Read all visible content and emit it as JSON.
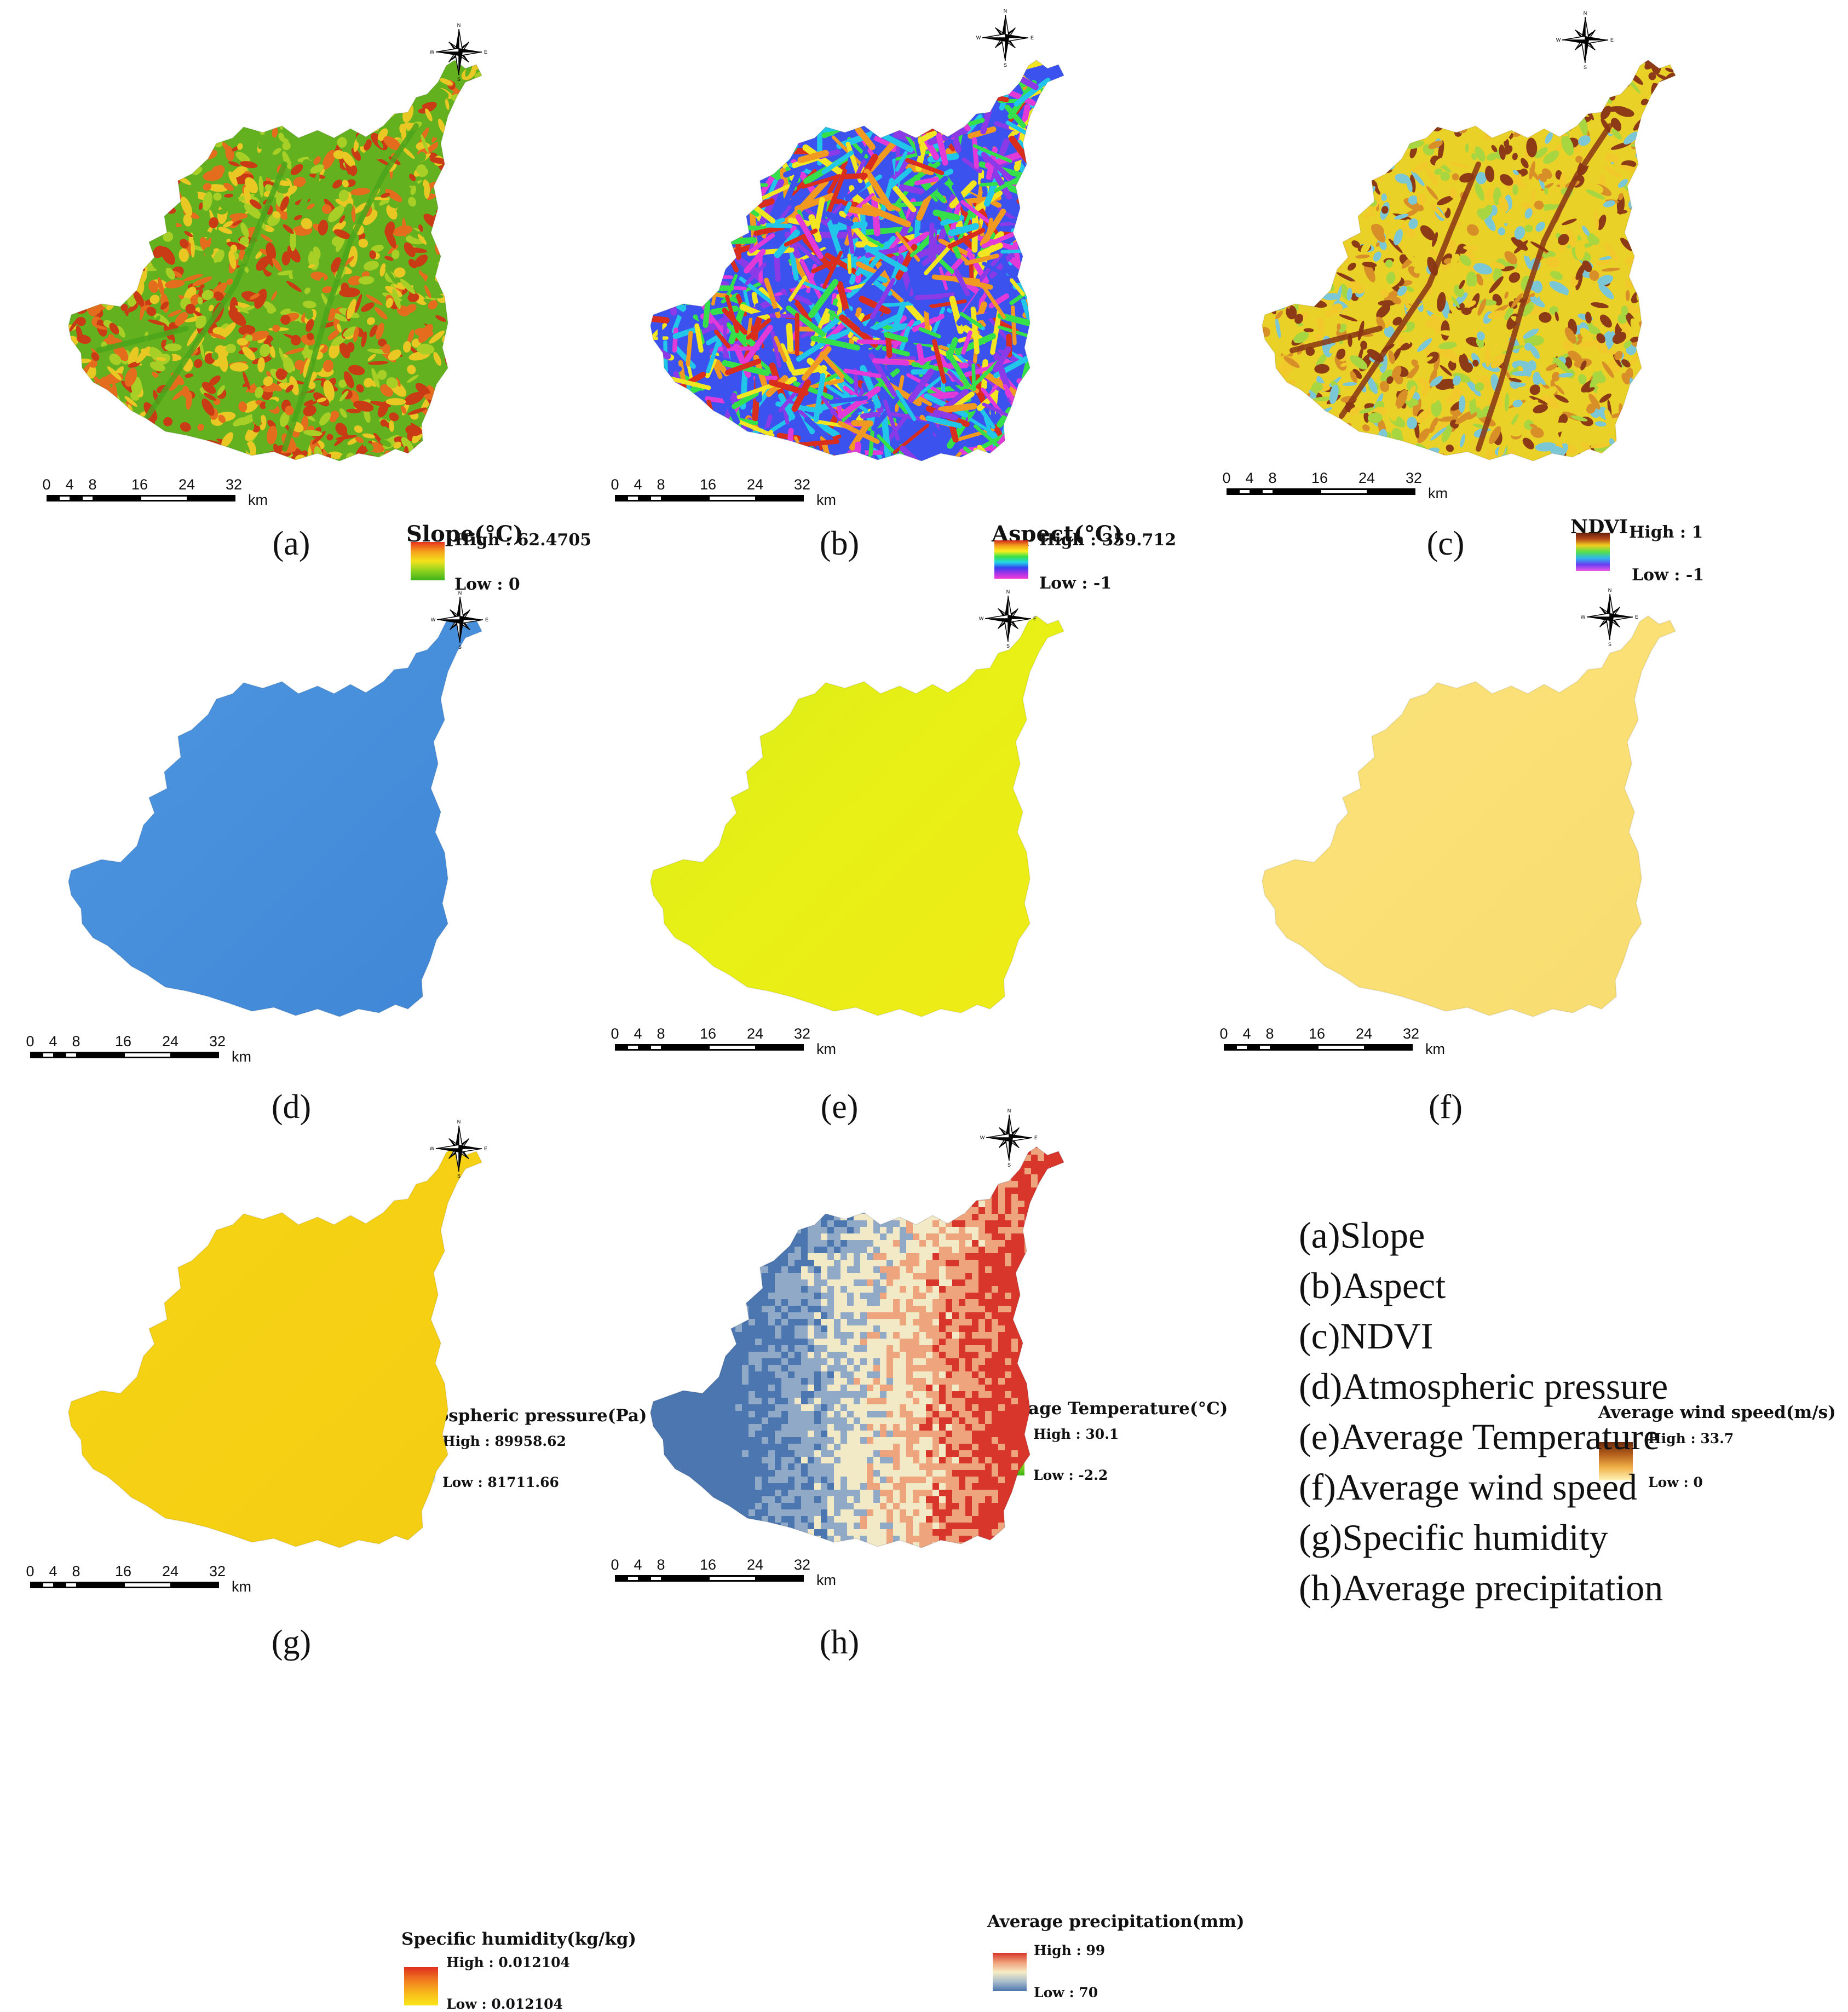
{
  "figure": {
    "panels": [
      {
        "id": "a",
        "label": "(a)",
        "legend_title": "Slope(°C)",
        "high_label": "High : 62.4705",
        "low_label": "Low : 0",
        "ramp_colors": [
          "#e8321e",
          "#f6a21c",
          "#f2e21c",
          "#8ed11f",
          "#3eb21a"
        ],
        "map_colors": [
          "#63b11e",
          "#a7cf25",
          "#e9c824",
          "#e36d1c",
          "#c93b15"
        ],
        "pattern": "terrain"
      },
      {
        "id": "b",
        "label": "(b)",
        "legend_title": "Aspect(°C)",
        "high_label": "High : 359.712",
        "low_label": "Low : -1",
        "ramp_colors": [
          "#d02a1a",
          "#f6a21c",
          "#f8ef20",
          "#35e04a",
          "#22d8e6",
          "#3342f0",
          "#a534e8",
          "#f03cd8"
        ],
        "map_colors": [
          "#e23ad8",
          "#8a3ae6",
          "#3b52ee",
          "#22c6e8",
          "#35e04a",
          "#f2e623",
          "#f19a22",
          "#d92d1d"
        ],
        "pattern": "aspect"
      },
      {
        "id": "c",
        "label": "(c)",
        "legend_title": "NDVI",
        "high_label": "High : 1",
        "low_label": "Low : -1",
        "ramp_colors": [
          "#6b1d0e",
          "#b54b1a",
          "#f0d020",
          "#55e04a",
          "#2fb6ec",
          "#6a3cf2",
          "#f05ae8"
        ],
        "map_colors": [
          "#e9d127",
          "#f1c92a",
          "#a7d640",
          "#7cc7d5",
          "#d98f28",
          "#8c3b16"
        ],
        "pattern": "ndvi"
      },
      {
        "id": "d",
        "label": "(d)",
        "legend_title": "Atmospheric pressure(Pa)",
        "high_label": "High : 89958.62",
        "low_label": "Low : 81711.66",
        "ramp_colors": [
          "#10258f",
          "#2e6bd0",
          "#8ec4ee",
          "#e2f2fb"
        ],
        "map_colors": [
          "#4f97e0",
          "#3f86d6"
        ],
        "pattern": "smooth"
      },
      {
        "id": "e",
        "label": "(e)",
        "legend_title": "Average Temperature(°C)",
        "high_label": "High : 30.1",
        "low_label": "Low : -2.2",
        "ramp_colors": [
          "#e8321e",
          "#f6a21c",
          "#f2e21c",
          "#8ed11f",
          "#3eb21a"
        ],
        "map_colors": [
          "#d9ea1b",
          "#e8f015",
          "#f0ea17"
        ],
        "pattern": "smooth"
      },
      {
        "id": "f",
        "label": "(f)",
        "legend_title": "Average wind speed(m/s)",
        "high_label": "High : 33.7",
        "low_label": "Low : 0",
        "ramp_colors": [
          "#6b2a0a",
          "#b8621d",
          "#f1b24a",
          "#fdf4b8"
        ],
        "map_colors": [
          "#fbe37a",
          "#f8dc70"
        ],
        "pattern": "smooth"
      },
      {
        "id": "g",
        "label": "(g)",
        "legend_title": "Specific humidity(kg/kg)",
        "high_label": "High : 0.012104",
        "low_label": "Low : 0.012104",
        "ramp_colors": [
          "#de2f1e",
          "#f07a20",
          "#f8b81a",
          "#fbe81a"
        ],
        "map_colors": [
          "#f6d415",
          "#f4cd12"
        ],
        "pattern": "smooth"
      },
      {
        "id": "h",
        "label": "(h)",
        "legend_title": "Average precipitation(mm)",
        "high_label": "High : 99",
        "low_label": "Low : 70",
        "ramp_colors": [
          "#d7362a",
          "#f0a07a",
          "#f6ecc4",
          "#a9bdcc",
          "#4a74ad"
        ],
        "map_colors": [
          "#4b76b0",
          "#8fa9c6",
          "#f2eac6",
          "#eea47c",
          "#d9362b"
        ],
        "pattern": "precip"
      }
    ],
    "scale_bar": {
      "ticks": [
        "0",
        "4",
        "8",
        "16",
        "24",
        "32"
      ],
      "unit": "km"
    },
    "compass": {
      "north": "N",
      "south": "S",
      "east": "E",
      "west": "W"
    },
    "key": [
      "(a)Slope",
      "(b)Aspect",
      "(c)NDVI",
      "(d)Atmospheric pressure",
      "(e)Average Temperature",
      "(f)Average wind speed",
      "(g)Specific humidity",
      "(h)Average precipitation"
    ]
  }
}
